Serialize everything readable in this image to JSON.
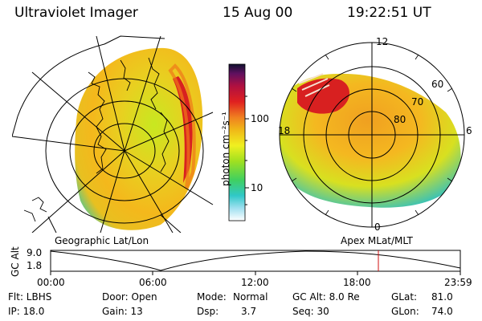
{
  "header": {
    "instrument": "Ultraviolet Imager",
    "date": "15 Aug 00",
    "time": "19:22:51 UT"
  },
  "left_panel": {
    "caption": "Geographic Lat/Lon"
  },
  "right_panel": {
    "caption": "Apex  MLat/MLT",
    "mlt_labels": {
      "top": "12",
      "left": "18",
      "right": "6",
      "bottom": "0"
    },
    "lat_labels": [
      "60",
      "70",
      "80"
    ]
  },
  "colorbar": {
    "label": "photon cm⁻²s⁻¹",
    "ticks": [
      "100",
      "10"
    ],
    "scale": "log"
  },
  "timeline": {
    "ylabel": "GC Alt",
    "yticks": [
      "9.0",
      "1.8"
    ],
    "xticks": [
      "00:00",
      "06:00",
      "12:00",
      "18:00",
      "23:59"
    ],
    "marker_color": "#d01010"
  },
  "info": {
    "flt": "Flt: LBHS",
    "ip": "IP: 18.0",
    "door": "Door: Open",
    "gain": "Gain: 13",
    "mode_label": "Mode:",
    "mode_value": "Normal",
    "dsp_label": "Dsp:",
    "dsp_value": "3.7",
    "gcalt": "GC Alt: 8.0 Re",
    "seq": "Seq: 30",
    "glat_label": "GLat:",
    "glat_value": "81.0",
    "glon_label": "GLon:",
    "glon_value": "74.0"
  }
}
